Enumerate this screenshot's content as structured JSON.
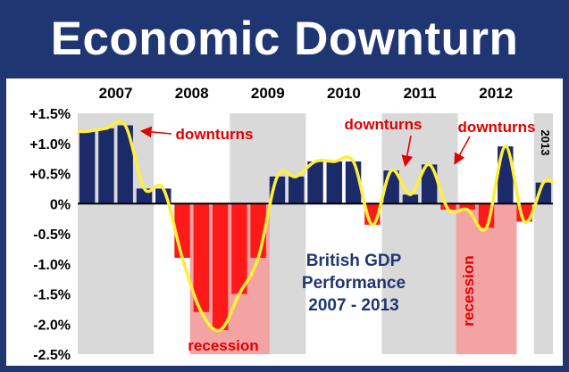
{
  "header": {
    "title": "Economic Downturn"
  },
  "chart_data": {
    "type": "bar",
    "title": "Economic Downturn",
    "subtitle_lines": [
      "British GDP",
      "Performance",
      "2007 - 2013"
    ],
    "ylim": [
      -2.5,
      1.5
    ],
    "yticks": [
      {
        "value": 1.5,
        "label": "+1.5%"
      },
      {
        "value": 1.0,
        "label": "+1.0%"
      },
      {
        "value": 0.5,
        "label": "+0.5%"
      },
      {
        "value": 0.0,
        "label": "0%"
      },
      {
        "value": -0.5,
        "label": "-0.5%"
      },
      {
        "value": -1.0,
        "label": "-1.0%"
      },
      {
        "value": -1.5,
        "label": "-1.5%"
      },
      {
        "value": -2.0,
        "label": "-2.0%"
      },
      {
        "value": -2.5,
        "label": "-2.5%"
      }
    ],
    "years": [
      "2007",
      "2008",
      "2009",
      "2010",
      "2011",
      "2012",
      "2013"
    ],
    "quarters_per_year": 4,
    "series": [
      {
        "values": [
          1.2,
          1.25,
          1.3,
          0.25,
          0.25,
          -0.9,
          -1.8,
          -2.1,
          -1.5,
          -0.9,
          0.45,
          0.45,
          0.7,
          0.7,
          0.7,
          -0.35,
          0.55,
          0.15,
          0.65,
          -0.1,
          -0.1,
          -0.4,
          0.95,
          -0.3,
          0.35
        ]
      }
    ],
    "bar_colors": {
      "positive": "#1b2a68",
      "negative": "#ff1a1a"
    },
    "band_color": "#d9d9d9",
    "recession_shade": "#f4a3a3",
    "trend_color": "#ffee3a",
    "recession_periods": [
      {
        "label": "recession",
        "start_q": 6,
        "end_q": 9
      },
      {
        "label": "recession",
        "start_q": 20,
        "end_q": 22
      }
    ],
    "annotations": [
      {
        "text": "downturns"
      },
      {
        "text": "downturns"
      },
      {
        "text": "downturns"
      }
    ],
    "grid": false,
    "legend": "none"
  }
}
